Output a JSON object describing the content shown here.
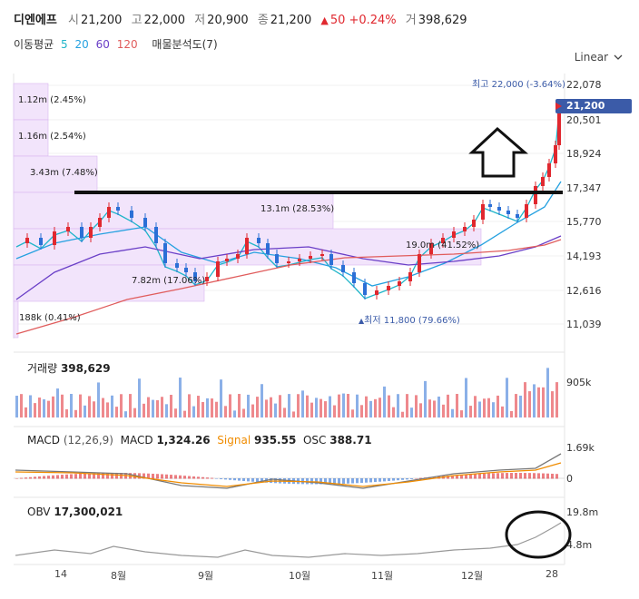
{
  "header": {
    "name": "디엔에프",
    "open_label": "시",
    "open": "21,200",
    "high_label": "고",
    "high": "22,000",
    "low_label": "저",
    "low": "20,900",
    "close_label": "종",
    "close": "21,200",
    "change_arrow": "▲",
    "change": "50",
    "change_pct": "+0.24%",
    "volume_label": "거",
    "volume": "398,629"
  },
  "moving_average": {
    "label": "이동평균",
    "periods": [
      "5",
      "20",
      "60",
      "120"
    ],
    "colors": [
      "#1fb5c9",
      "#25a1e0",
      "#6a3fc7",
      "#e05c5c"
    ],
    "volume_profile_label": "매물분석도(7)"
  },
  "scale_selector": {
    "label": "Linear",
    "icon": "chevron-down-icon"
  },
  "price_axis": [
    "22,078",
    "20,501",
    "18,924",
    "17,347",
    "15,770",
    "14,193",
    "12,616",
    "11,039"
  ],
  "current_price_tag": "21,200",
  "max_label": "최고 22,000 (-3.64%)",
  "min_label": "최저 11,800 (79.66%)",
  "volume_profile": [
    "1.12m (2.45%)",
    "1.16m (2.54%)",
    "3.43m (7.48%)",
    "13.1m (28.53%)",
    "19.0m (41.52%)",
    "7.82m (17.06%)",
    "188k (0.41%)"
  ],
  "volume_panel": {
    "label": "거래량",
    "value": "398,629",
    "axis": "905k"
  },
  "macd_panel": {
    "label": "MACD",
    "params": "(12,26,9)",
    "macd_label": "MACD",
    "macd": "1,324.26",
    "signal_label": "Signal",
    "signal": "935.55",
    "osc_label": "OSC",
    "osc": "388.71",
    "axis_top": "1.69k",
    "axis_zero": "0"
  },
  "obv_panel": {
    "label": "OBV",
    "value": "17,300,021",
    "axis_top": "19.8m",
    "axis_bottom": "4.8m"
  },
  "x_axis": [
    "14",
    "8월",
    "9월",
    "10월",
    "11월",
    "12월",
    "28"
  ],
  "colors": {
    "up": "#e0282f",
    "down": "#2b6fd6",
    "profile_fill": "#f2e4fb",
    "price_tag": "#3b5ba8"
  }
}
